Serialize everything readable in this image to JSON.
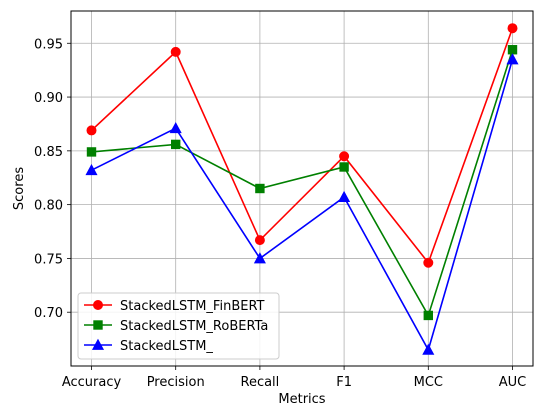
{
  "chart_data": {
    "type": "line",
    "categories": [
      "Accuracy",
      "Precision",
      "Recall",
      "F1",
      "MCC",
      "AUC"
    ],
    "xlabel": "Metrics",
    "ylabel": "Scores",
    "ylim": [
      0.65,
      0.98
    ],
    "yticks": [
      0.7,
      0.75,
      0.8,
      0.85,
      0.9,
      0.95
    ],
    "grid": true,
    "legend_position": "lower-left",
    "series": [
      {
        "name": "StackedLSTM_FinBERT",
        "color": "#ff0000",
        "marker": "circle",
        "values": [
          0.869,
          0.942,
          0.767,
          0.845,
          0.746,
          0.964
        ]
      },
      {
        "name": "StackedLSTM_RoBERTa",
        "color": "#008000",
        "marker": "square",
        "values": [
          0.849,
          0.856,
          0.815,
          0.835,
          0.697,
          0.944
        ]
      },
      {
        "name": "StackedLSTM_",
        "color": "#0000ff",
        "marker": "triangle",
        "values": [
          0.832,
          0.871,
          0.75,
          0.807,
          0.665,
          0.935
        ]
      }
    ]
  }
}
